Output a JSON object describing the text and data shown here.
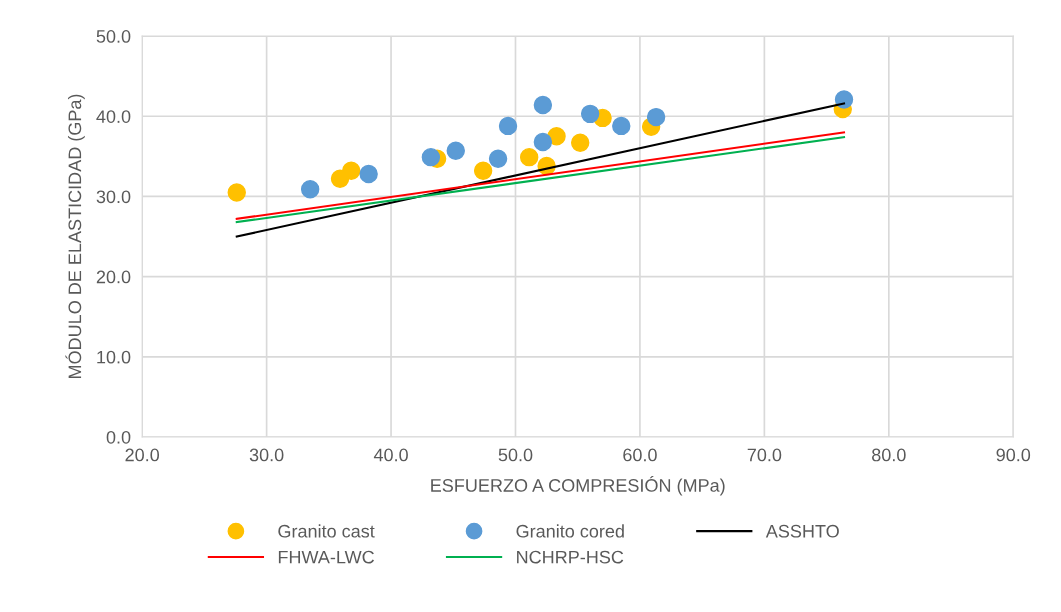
{
  "chart_data": {
    "type": "scatter",
    "xlabel": "ESFUERZO A COMPRESIÓN (MPa)",
    "ylabel": "MÓDULO DE ELASTICIDAD (GPa)",
    "xlim": [
      20,
      90
    ],
    "xticks": [
      {
        "value": 20,
        "label": "20.0"
      },
      {
        "value": 30,
        "label": "30.0"
      },
      {
        "value": 40,
        "label": "40.0"
      },
      {
        "value": 50,
        "label": "50.0"
      },
      {
        "value": 60,
        "label": "60.0"
      },
      {
        "value": 70,
        "label": "70.0"
      },
      {
        "value": 80,
        "label": "80.0"
      },
      {
        "value": 90,
        "label": "90.0"
      }
    ],
    "ylim": [
      0,
      50
    ],
    "yticks": [
      {
        "value": 0,
        "label": "0.0"
      },
      {
        "value": 10,
        "label": "10.0"
      },
      {
        "value": 20,
        "label": "20.0"
      },
      {
        "value": 30,
        "label": "30.0"
      },
      {
        "value": 40,
        "label": "40.0"
      },
      {
        "value": 50,
        "label": "50.0"
      }
    ],
    "grid": true,
    "legend": "bottom",
    "series": [
      {
        "name": "Granito cast",
        "marker": "circle",
        "color": "#ffc000",
        "x": [
          27.6,
          35.9,
          36.8,
          43.7,
          47.4,
          51.1,
          52.5,
          53.3,
          55.2,
          57.0,
          60.9,
          76.3
        ],
        "values": [
          30.5,
          32.2,
          33.2,
          34.7,
          33.2,
          34.9,
          33.8,
          37.5,
          36.7,
          39.8,
          38.7,
          40.9
        ]
      },
      {
        "name": "Granito cored",
        "marker": "circle",
        "color": "#5b9bd5",
        "x": [
          33.5,
          38.2,
          43.2,
          45.2,
          48.6,
          49.4,
          52.2,
          52.2,
          56.0,
          58.5,
          61.3,
          76.4
        ],
        "values": [
          30.9,
          32.8,
          34.9,
          35.7,
          34.7,
          38.8,
          41.4,
          36.8,
          40.3,
          38.8,
          39.9,
          42.1
        ]
      },
      {
        "name": "ASSHTO",
        "type": "line",
        "color": "#000000",
        "x": [
          27.6,
          76.4
        ],
        "values": [
          25.0,
          41.6
        ]
      },
      {
        "name": "FHWA-LWC",
        "type": "line",
        "color": "#ff0000",
        "x": [
          27.6,
          76.4
        ],
        "values": [
          27.2,
          38.0
        ]
      },
      {
        "name": "NCHRP-HSC",
        "type": "line",
        "color": "#00b050",
        "x": [
          27.6,
          76.4
        ],
        "values": [
          26.8,
          37.4
        ]
      }
    ]
  }
}
